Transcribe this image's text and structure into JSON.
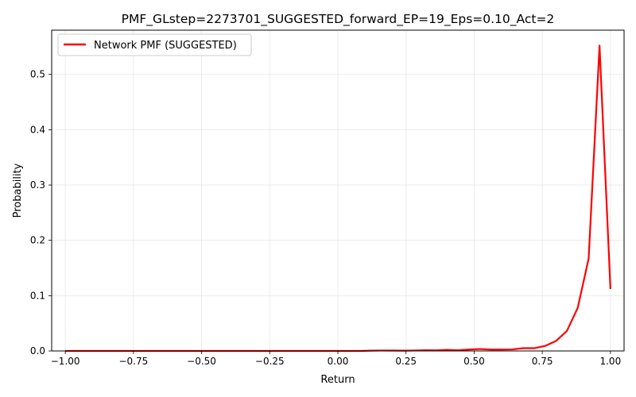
{
  "chart_data": {
    "type": "line",
    "title": "PMF_GLstep=2273701_SUGGESTED_forward_EP=19_Eps=0.10_Act=2",
    "xlabel": "Return",
    "ylabel": "Probability",
    "xlim": [
      -1.05,
      1.05
    ],
    "ylim": [
      0,
      0.58
    ],
    "xticks": [
      -1.0,
      -0.75,
      -0.5,
      -0.25,
      0.0,
      0.25,
      0.5,
      0.75,
      1.0
    ],
    "xtick_labels": [
      "−1.00",
      "−0.75",
      "−0.50",
      "−0.25",
      "0.00",
      "0.25",
      "0.50",
      "0.75",
      "1.00"
    ],
    "yticks": [
      0.0,
      0.1,
      0.2,
      0.3,
      0.4,
      0.5
    ],
    "ytick_labels": [
      "0.0",
      "0.1",
      "0.2",
      "0.3",
      "0.4",
      "0.5"
    ],
    "grid": true,
    "legend_position": "top-left",
    "series": [
      {
        "name": "Network PMF (SUGGESTED)",
        "color": "#ff0000",
        "x": [
          -1.0,
          -0.96,
          -0.92,
          -0.88,
          -0.84,
          -0.8,
          -0.76,
          -0.72,
          -0.68,
          -0.64,
          -0.6,
          -0.56,
          -0.52,
          -0.48,
          -0.44,
          -0.4,
          -0.36,
          -0.32,
          -0.28,
          -0.24,
          -0.2,
          -0.16,
          -0.12,
          -0.08,
          -0.04,
          0.0,
          0.04,
          0.08,
          0.12,
          0.16,
          0.2,
          0.24,
          0.28,
          0.32,
          0.36,
          0.4,
          0.44,
          0.48,
          0.52,
          0.56,
          0.6,
          0.64,
          0.68,
          0.72,
          0.76,
          0.8,
          0.84,
          0.88,
          0.92,
          0.96,
          1.0
        ],
        "y": [
          0.0,
          0.0,
          0.0,
          0.0,
          0.0,
          0.0,
          0.0,
          0.0,
          0.0,
          0.0,
          0.0,
          0.0,
          0.0,
          0.0,
          0.0,
          0.0,
          0.0,
          0.0,
          0.0,
          0.0,
          0.0,
          0.0,
          0.0,
          0.0,
          0.0,
          0.0,
          0.0,
          0.0,
          0.0005,
          0.0008,
          0.0007,
          0.0005,
          0.0008,
          0.0012,
          0.0011,
          0.002,
          0.0013,
          0.0025,
          0.0035,
          0.0025,
          0.0025,
          0.0028,
          0.005,
          0.005,
          0.009,
          0.018,
          0.036,
          0.078,
          0.167,
          0.552,
          0.112
        ]
      }
    ]
  }
}
